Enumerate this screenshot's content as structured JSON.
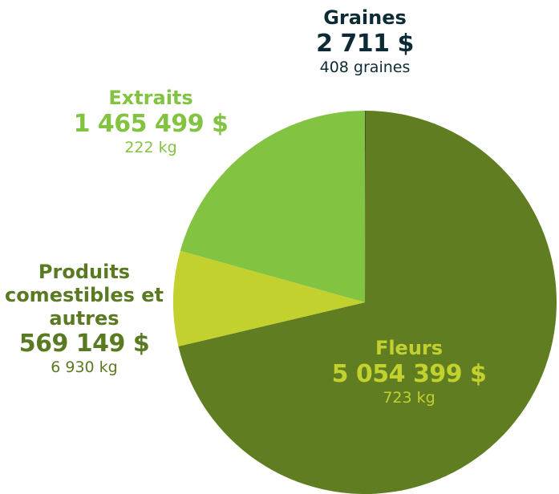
{
  "chart_data": {
    "type": "pie",
    "categories": [
      "Graines",
      "Fleurs",
      "Produits comestibles et autres",
      "Extraits"
    ],
    "values": [
      2711,
      5054399,
      569149,
      1465499
    ],
    "value_labels": [
      "2 711 $",
      "5 054 399 $",
      "569 149 $",
      "1 465 499 $"
    ],
    "details": [
      "408 graines",
      "723 kg",
      "6 930 kg",
      "222 kg"
    ],
    "colors": [
      "#0d2b2e",
      "#607d22",
      "#c2d12e",
      "#82c341"
    ],
    "label_colors": [
      "#0d2b35",
      "#c2d12e",
      "#5a7a22",
      "#82c341"
    ]
  }
}
